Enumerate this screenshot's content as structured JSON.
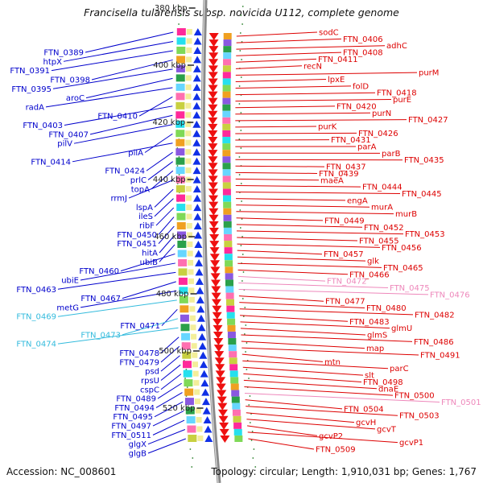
{
  "title": "Francisella tularensis subsp. novicida U112, complete genome",
  "footer": {
    "accession": "Accession: NC_008601",
    "topology": "Topology: circular; Length: 1,910,031 bp; Genes: 1,767"
  },
  "colors": {
    "left_gene": "#0000cc",
    "left_gene_faded": "#33bbdd",
    "right_gene": "#dd0000",
    "right_gene_faded": "#ee88bb",
    "tick_marker": "#2a7f2a",
    "backbone": "#8a8a8a"
  },
  "kbp_ticks": [
    "380 kbp",
    "400 kbp",
    "420 kbp",
    "440 kbp",
    "460 kbp",
    "480 kbp",
    "500 kbp",
    "520 kbp"
  ],
  "left_genes": [
    {
      "label": "FTN_0389",
      "faded": false
    },
    {
      "label": "htpX",
      "faded": false
    },
    {
      "label": "FTN_0391",
      "faded": false
    },
    {
      "label": "FTN_0398",
      "faded": false
    },
    {
      "label": "FTN_0395",
      "faded": false
    },
    {
      "label": "aroC",
      "faded": false
    },
    {
      "label": "radA",
      "faded": false
    },
    {
      "label": "FTN_0410",
      "faded": false
    },
    {
      "label": "FTN_0403",
      "faded": false
    },
    {
      "label": "FTN_0407",
      "faded": false
    },
    {
      "label": "pilV",
      "faded": false
    },
    {
      "label": "pilA",
      "faded": false
    },
    {
      "label": "FTN_0414",
      "faded": false
    },
    {
      "label": "FTN_0424",
      "faded": false
    },
    {
      "label": "prlC",
      "faded": false
    },
    {
      "label": "topA",
      "faded": false
    },
    {
      "label": "rrmJ",
      "faded": false
    },
    {
      "label": "lspA",
      "faded": false
    },
    {
      "label": "ileS",
      "faded": false
    },
    {
      "label": "ribF",
      "faded": false
    },
    {
      "label": "FTN_0450",
      "faded": false
    },
    {
      "label": "FTN_0451",
      "faded": false
    },
    {
      "label": "hitA",
      "faded": false
    },
    {
      "label": "ubiB",
      "faded": false
    },
    {
      "label": "FTN_0460",
      "faded": false
    },
    {
      "label": "ubiE",
      "faded": false
    },
    {
      "label": "FTN_0463",
      "faded": false
    },
    {
      "label": "FTN_0467",
      "faded": false
    },
    {
      "label": "metG",
      "faded": false
    },
    {
      "label": "FTN_0469",
      "faded": true
    },
    {
      "label": "FTN_0471",
      "faded": false
    },
    {
      "label": "FTN_0473",
      "faded": true
    },
    {
      "label": "FTN_0474",
      "faded": true
    },
    {
      "label": "FTN_0478",
      "faded": false
    },
    {
      "label": "FTN_0479",
      "faded": false
    },
    {
      "label": "psd",
      "faded": false
    },
    {
      "label": "rpsU",
      "faded": false
    },
    {
      "label": "cspC",
      "faded": false
    },
    {
      "label": "FTN_0489",
      "faded": false
    },
    {
      "label": "FTN_0494",
      "faded": false
    },
    {
      "label": "FTN_0495",
      "faded": false
    },
    {
      "label": "FTN_0497",
      "faded": false
    },
    {
      "label": "FTN_0511",
      "faded": false
    },
    {
      "label": "glgX",
      "faded": false
    },
    {
      "label": "glgB",
      "faded": false
    }
  ],
  "right_genes": [
    {
      "label": "sodC",
      "faded": false
    },
    {
      "label": "FTN_0406",
      "faded": false
    },
    {
      "label": "adhC",
      "faded": false
    },
    {
      "label": "FTN_0408",
      "faded": false
    },
    {
      "label": "FTN_0411",
      "faded": false
    },
    {
      "label": "recN",
      "faded": false
    },
    {
      "label": "purM",
      "faded": false
    },
    {
      "label": "lpxE",
      "faded": false
    },
    {
      "label": "folD",
      "faded": false
    },
    {
      "label": "FTN_0418",
      "faded": false
    },
    {
      "label": "purE",
      "faded": false
    },
    {
      "label": "FTN_0420",
      "faded": false
    },
    {
      "label": "purN",
      "faded": false
    },
    {
      "label": "FTN_0427",
      "faded": false
    },
    {
      "label": "purK",
      "faded": false
    },
    {
      "label": "FTN_0426",
      "faded": false
    },
    {
      "label": "FTN_0431",
      "faded": false
    },
    {
      "label": "parA",
      "faded": false
    },
    {
      "label": "parB",
      "faded": false
    },
    {
      "label": "FTN_0435",
      "faded": false
    },
    {
      "label": "FTN_0437",
      "faded": false
    },
    {
      "label": "FTN_0439",
      "faded": false
    },
    {
      "label": "maeA",
      "faded": false
    },
    {
      "label": "FTN_0444",
      "faded": false
    },
    {
      "label": "FTN_0445",
      "faded": false
    },
    {
      "label": "engA",
      "faded": false
    },
    {
      "label": "murA",
      "faded": false
    },
    {
      "label": "murB",
      "faded": false
    },
    {
      "label": "FTN_0449",
      "faded": false
    },
    {
      "label": "FTN_0452",
      "faded": false
    },
    {
      "label": "FTN_0453",
      "faded": false
    },
    {
      "label": "FTN_0455",
      "faded": false
    },
    {
      "label": "FTN_0456",
      "faded": false
    },
    {
      "label": "FTN_0457",
      "faded": false
    },
    {
      "label": "glk",
      "faded": false
    },
    {
      "label": "FTN_0465",
      "faded": false
    },
    {
      "label": "FTN_0466",
      "faded": false
    },
    {
      "label": "FTN_0472",
      "faded": true
    },
    {
      "label": "FTN_0475",
      "faded": true
    },
    {
      "label": "FTN_0476",
      "faded": true
    },
    {
      "label": "FTN_0477",
      "faded": false
    },
    {
      "label": "FTN_0480",
      "faded": false
    },
    {
      "label": "FTN_0482",
      "faded": false
    },
    {
      "label": "FTN_0483",
      "faded": false
    },
    {
      "label": "glmU",
      "faded": false
    },
    {
      "label": "glmS",
      "faded": false
    },
    {
      "label": "FTN_0486",
      "faded": false
    },
    {
      "label": "map",
      "faded": false
    },
    {
      "label": "FTN_0491",
      "faded": false
    },
    {
      "label": "mtn",
      "faded": false
    },
    {
      "label": "parC",
      "faded": false
    },
    {
      "label": "slt",
      "faded": false
    },
    {
      "label": "FTN_0498",
      "faded": false
    },
    {
      "label": "dnaE",
      "faded": false
    },
    {
      "label": "FTN_0500",
      "faded": false
    },
    {
      "label": "FTN_0501",
      "faded": true
    },
    {
      "label": "FTN_0504",
      "faded": false
    },
    {
      "label": "FTN_0503",
      "faded": false
    },
    {
      "label": "gcvH",
      "faded": false
    },
    {
      "label": "gcvT",
      "faded": false
    },
    {
      "label": "gcvP2",
      "faded": false
    },
    {
      "label": "gcvP1",
      "faded": false
    },
    {
      "label": "FTN_0509",
      "faded": false
    }
  ]
}
